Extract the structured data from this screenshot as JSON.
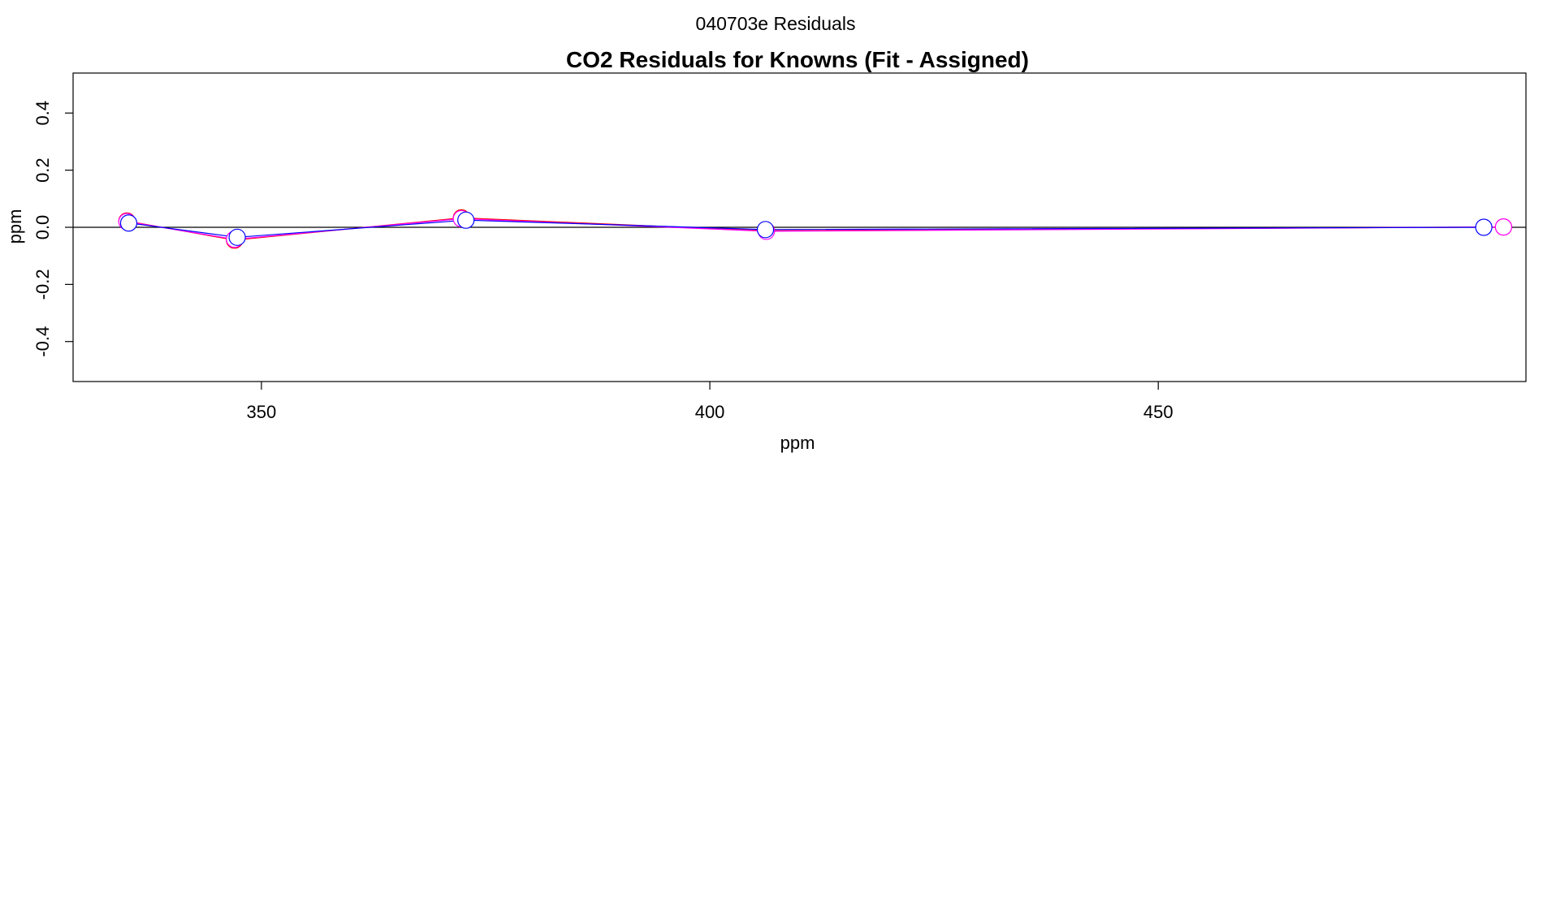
{
  "page": {
    "suptitle": "040703e  Residuals"
  },
  "chart_data": {
    "type": "line",
    "title": "CO2 Residuals for Knowns (Fit - Assigned)",
    "xlabel": "ppm",
    "ylabel": "ppm",
    "xlim": [
      329,
      491
    ],
    "ylim": [
      -0.54,
      0.54
    ],
    "xticks": [
      350,
      400,
      450
    ],
    "xtick_labels": [
      "350",
      "400",
      "450"
    ],
    "yticks": [
      -0.4,
      -0.2,
      0.0,
      0.2,
      0.4
    ],
    "ytick_labels": [
      "-0.4",
      "-0.2",
      "0.0",
      "0.2",
      "0.4"
    ],
    "reference_line_y": 0.0,
    "grid": false,
    "legend": "none",
    "series": [
      {
        "color": "#ff0000",
        "marker": "open-circle",
        "x": [
          335.0,
          347.0,
          372.3,
          406.3,
          488.5
        ],
        "y": [
          0.022,
          -0.045,
          0.033,
          -0.012,
          0.001
        ]
      },
      {
        "color": "#ff00ff",
        "marker": "open-circle",
        "x": [
          335.0,
          347.0,
          372.3,
          406.3,
          488.5
        ],
        "y": [
          0.02,
          -0.042,
          0.03,
          -0.014,
          0.001
        ]
      },
      {
        "color": "#0000ff",
        "marker": "open-circle",
        "x": [
          335.2,
          347.3,
          372.8,
          406.2,
          486.3
        ],
        "y": [
          0.015,
          -0.035,
          0.025,
          -0.008,
          0.0
        ]
      }
    ]
  }
}
